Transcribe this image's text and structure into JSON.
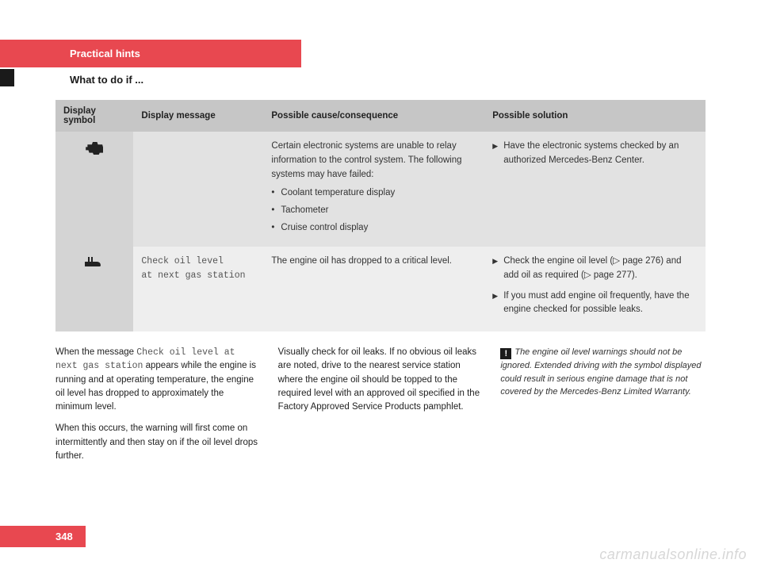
{
  "header": {
    "section": "Practical hints",
    "subsection": "What to do if ..."
  },
  "table": {
    "headers": [
      "Display symbol",
      "Display message",
      "Possible cause/consequence",
      "Possible solution"
    ],
    "rows": [
      {
        "symbol": "engine",
        "message": "",
        "cause_intro": "Certain electronic systems are unable to relay information to the control system. The following systems may have failed:",
        "cause_bullets": [
          "Coolant temperature display",
          "Tachometer",
          "Cruise control display"
        ],
        "solutions": [
          "Have the electronic systems checked by an authorized Mercedes-Benz Center."
        ]
      },
      {
        "symbol": "oil",
        "message_line1": "Check oil level",
        "message_line2": "at next gas station",
        "cause_intro": "The engine oil has dropped to a critical level.",
        "cause_bullets": [],
        "solutions": [
          "Check the engine oil level (▷ page 276) and add oil as required (▷ page 277).",
          "If you must add engine oil frequently, have the engine checked for possible leaks."
        ]
      }
    ]
  },
  "body": {
    "col1_p1_a": "When the message ",
    "col1_p1_mono": "Check oil level at next gas station",
    "col1_p1_b": " appears while the engine is running and at operating temperature, the engine oil level has dropped to approximately the minimum level.",
    "col1_p2": "When this occurs, the warning will first come on intermittently and then stay on if the oil level drops further.",
    "col2_p1": "Visually check for oil leaks. If no obvious oil leaks are noted, drive to the nearest service station where the engine oil should be topped to the required level with an approved oil specified in the Factory Approved Service Products pamphlet.",
    "col3_warn": "The engine oil level warnings should not be ignored. Extended driving with the symbol displayed could result in serious engine damage that is not covered by the Mercedes-Benz Limited Warranty."
  },
  "page_number": "348",
  "watermark": "carmanualsonline.info"
}
